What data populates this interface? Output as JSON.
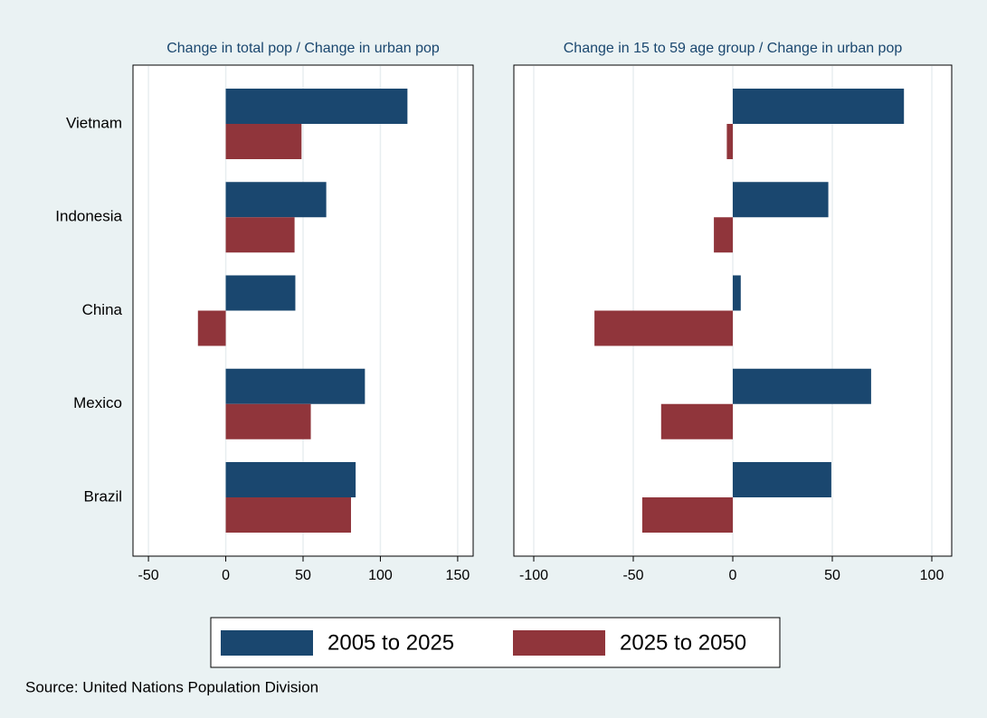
{
  "chart_data": [
    {
      "type": "bar",
      "orientation": "horizontal",
      "title": "Change in total pop / Change in urban pop",
      "categories": [
        "Vietnam",
        "Indonesia",
        "China",
        "Mexico",
        "Brazil"
      ],
      "series": [
        {
          "name": "2005 to 2025",
          "color": "#1a476f",
          "values": [
            117.5,
            65,
            45,
            90,
            84
          ]
        },
        {
          "name": "2025 to 2050",
          "color": "#90353b",
          "values": [
            49,
            44.5,
            -18,
            55,
            81
          ]
        }
      ],
      "xlim": [
        -60,
        160
      ],
      "xticks": [
        -50,
        0,
        50,
        100,
        150
      ],
      "grid": true
    },
    {
      "type": "bar",
      "orientation": "horizontal",
      "title": "Change in 15 to 59 age group / Change in urban pop",
      "series": [
        {
          "color": "#1a476f",
          "values": [
            86,
            48,
            4,
            69.5,
            49.5
          ]
        },
        {
          "color": "#90353b",
          "values": [
            -3,
            -9.5,
            -69.5,
            -36,
            -45.5
          ]
        }
      ],
      "xlim": [
        -110,
        110
      ],
      "xticks": [
        -100,
        -50,
        0,
        50,
        100
      ],
      "grid": true
    }
  ],
  "source": "Source: United Nations Population Division"
}
